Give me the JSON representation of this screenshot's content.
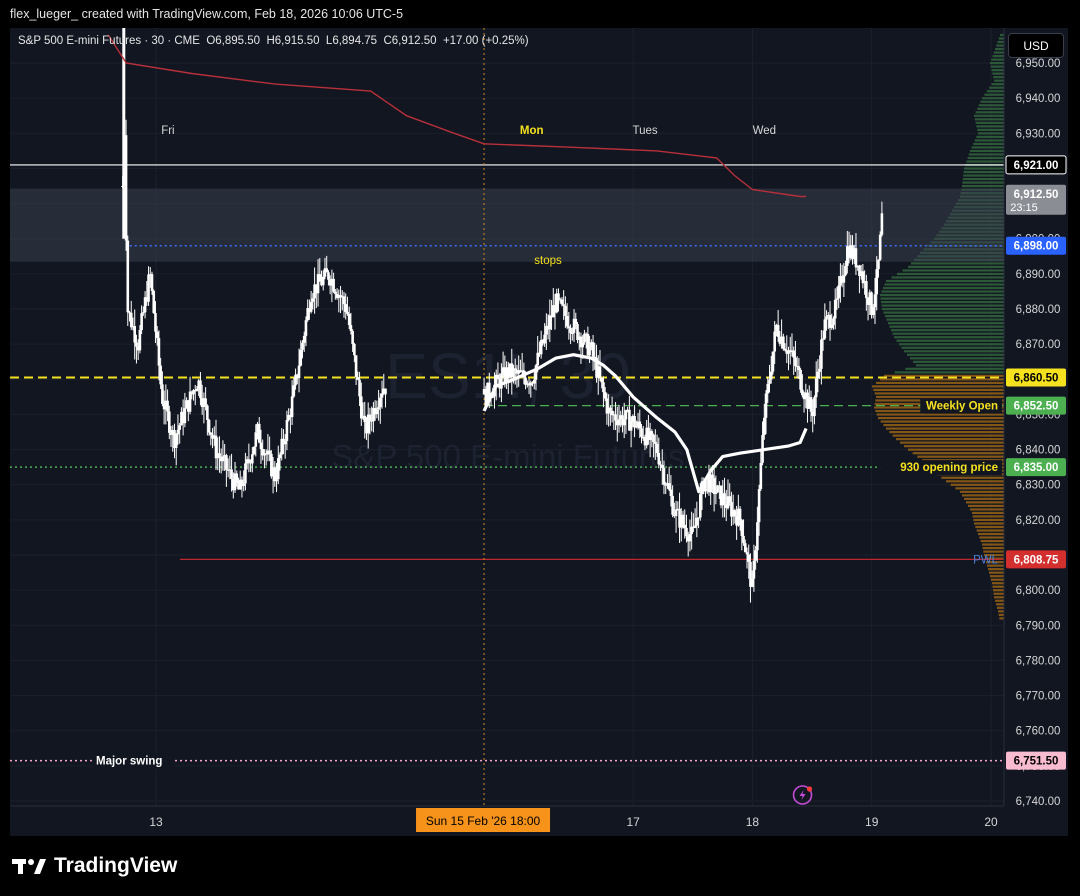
{
  "header": {
    "author_line": "flex_lueger_ created with TradingView.com, Feb 18, 2026 10:06 UTC-5"
  },
  "legend": {
    "symbol": "S&P 500 E-mini Futures · 30 · CME",
    "open_label": "O",
    "open": "6,895.50",
    "high_label": "H",
    "high": "6,915.50",
    "low_label": "L",
    "low": "6,894.75",
    "close_label": "C",
    "close": "6,912.50",
    "change": "+17.00 (+0.25%)"
  },
  "watermark": {
    "ticker": "ES1!, 30",
    "name": "S&P 500 E-mini Futures"
  },
  "currency_button": "USD",
  "branding": {
    "name": "TradingView"
  },
  "colors": {
    "background": "#111621",
    "candle": "#ffffff",
    "vwap": "#b8303a",
    "session_line": "#ffffff",
    "profile_green": "#2e5c3a",
    "profile_orange": "#8a5a16",
    "yellow_dash": "#f5e11e",
    "green_dash": "#4caf50",
    "blue_dots": "#3d6bff",
    "pink_dots": "#f3a6c5",
    "pwl_line": "#c0272d"
  },
  "chart_data": {
    "type": "candlestick",
    "y_axis": {
      "range": [
        6735,
        6960
      ],
      "ticks": [
        6950,
        6940,
        6930,
        6920,
        6910,
        6900,
        6890,
        6880,
        6870,
        6860,
        6850,
        6840,
        6830,
        6820,
        6810,
        6800,
        6790,
        6780,
        6770,
        6760,
        6750,
        6740
      ],
      "tick_labels": [
        "6,950.00",
        "6,940.00",
        "6,930.00",
        "6,920.00",
        "6,910.00",
        "6,900.00",
        "6,890.00",
        "6,880.00",
        "6,870.00",
        "6,860.00",
        "6,850.00",
        "6,840.00",
        "6,830.00",
        "6,820.00",
        "6,810.00",
        "6,800.00",
        "6,790.00",
        "6,780.00",
        "6,770.00",
        "6,760.00",
        "6,750.00",
        "6,740.00"
      ]
    },
    "x_axis": {
      "ticks": [
        {
          "label": "13",
          "day": 13.0
        },
        {
          "label": "17",
          "day": 17.0
        },
        {
          "label": "18",
          "day": 18.0
        },
        {
          "label": "19",
          "day": 19.0
        },
        {
          "label": "20",
          "day": 20.0
        }
      ],
      "crosshair_label": "Sun 15 Feb '26   18:00",
      "crosshair_day": 15.75,
      "range": [
        12.58,
        20.15
      ]
    },
    "day_labels": [
      {
        "label": "Fri",
        "day": 13.1,
        "highlight": false
      },
      {
        "label": "Mon",
        "day": 16.15,
        "highlight": true
      },
      {
        "label": "Tues",
        "day": 17.1,
        "highlight": false
      },
      {
        "label": "Wed",
        "day": 18.1,
        "highlight": false
      }
    ],
    "price_markers": [
      {
        "label": "6,921.00",
        "price": 6921.0,
        "bg": "#000000",
        "fg": "#ffffff",
        "border": "#ffffff"
      },
      {
        "label": "6,912.50",
        "sub": "23:15",
        "price": 6912.5,
        "bg": "#8a8d93",
        "fg": "#ffffff"
      },
      {
        "label": "6,898.00",
        "price": 6898.0,
        "bg": "#2962ff",
        "fg": "#ffffff"
      },
      {
        "label": "6,860.50",
        "price": 6860.5,
        "bg": "#f5e11e",
        "fg": "#000000"
      },
      {
        "label": "6,852.50",
        "price": 6852.5,
        "bg": "#4caf50",
        "fg": "#ffffff"
      },
      {
        "label": "6,835.00",
        "price": 6835.0,
        "bg": "#4caf50",
        "fg": "#ffffff"
      },
      {
        "label": "6,808.75",
        "price": 6808.75,
        "bg": "#d32f2f",
        "fg": "#ffffff"
      },
      {
        "label": "6,751.50",
        "price": 6751.5,
        "bg": "#f8bbd0",
        "fg": "#000000"
      }
    ],
    "levels": [
      {
        "name": "session-high-line",
        "price": 6921.0,
        "style": "solid",
        "color": "#ffffff"
      },
      {
        "name": "stops-zone",
        "price_from": 6898.0,
        "price_to": 6912.0,
        "label": "stops"
      },
      {
        "name": "stops-line",
        "price": 6898.0,
        "style": "dotted",
        "color": "#3d6bff",
        "from_day": 12.78
      },
      {
        "name": "yellow-level",
        "price": 6860.5,
        "style": "dashed",
        "color": "#f5e11e"
      },
      {
        "name": "weekly-open",
        "price": 6852.5,
        "style": "dashed",
        "color": "#4caf50",
        "label": "Weekly Open",
        "from_day": 15.75
      },
      {
        "name": "opening-price-930",
        "price": 6835.0,
        "style": "dotted",
        "color": "#4caf50",
        "label": "930 opening price"
      },
      {
        "name": "pwl",
        "price": 6808.75,
        "style": "solid",
        "color": "#c0272d",
        "label": "PWL",
        "from_day": 13.2
      },
      {
        "name": "major-swing",
        "price": 6751.5,
        "style": "dotted",
        "color": "#f3a6c5",
        "label": "Major swing"
      }
    ],
    "vwap": {
      "points": [
        [
          12.6,
          6958
        ],
        [
          12.75,
          6950
        ],
        [
          13.3,
          6947
        ],
        [
          14.0,
          6944
        ],
        [
          14.8,
          6942
        ],
        [
          15.1,
          6935
        ],
        [
          15.5,
          6930
        ],
        [
          15.75,
          6927
        ],
        [
          16.5,
          6926
        ],
        [
          17.2,
          6925
        ],
        [
          17.7,
          6923
        ],
        [
          17.85,
          6918
        ],
        [
          18.0,
          6914
        ],
        [
          18.4,
          6912
        ],
        [
          18.45,
          6912
        ]
      ]
    },
    "session_avg": {
      "points": [
        [
          15.75,
          6851
        ],
        [
          15.85,
          6858
        ],
        [
          16.0,
          6860
        ],
        [
          16.2,
          6863
        ],
        [
          16.35,
          6866
        ],
        [
          16.5,
          6867
        ],
        [
          16.65,
          6866
        ],
        [
          16.75,
          6864
        ],
        [
          16.85,
          6861
        ],
        [
          17.0,
          6855
        ],
        [
          17.2,
          6849
        ],
        [
          17.35,
          6845
        ],
        [
          17.45,
          6840
        ],
        [
          17.55,
          6828
        ],
        [
          17.65,
          6834
        ],
        [
          17.75,
          6838
        ],
        [
          17.9,
          6839
        ],
        [
          18.1,
          6840
        ],
        [
          18.3,
          6841
        ],
        [
          18.4,
          6842
        ],
        [
          18.45,
          6846
        ]
      ]
    },
    "candles_anchor": [
      [
        12.72,
        6915
      ],
      [
        12.73,
        6940
      ],
      [
        12.76,
        6880
      ],
      [
        12.85,
        6870
      ],
      [
        12.95,
        6890
      ],
      [
        13.05,
        6855
      ],
      [
        13.15,
        6843
      ],
      [
        13.35,
        6860
      ],
      [
        13.5,
        6840
      ],
      [
        13.7,
        6828
      ],
      [
        13.85,
        6845
      ],
      [
        14.0,
        6832
      ],
      [
        14.15,
        6855
      ],
      [
        14.3,
        6885
      ],
      [
        14.45,
        6890
      ],
      [
        14.6,
        6880
      ],
      [
        14.75,
        6845
      ],
      [
        14.9,
        6858
      ],
      [
        15.75,
        6855
      ],
      [
        15.95,
        6862
      ],
      [
        16.15,
        6860
      ],
      [
        16.35,
        6882
      ],
      [
        16.5,
        6875
      ],
      [
        16.65,
        6868
      ],
      [
        16.8,
        6850
      ],
      [
        17.0,
        6848
      ],
      [
        17.2,
        6840
      ],
      [
        17.35,
        6822
      ],
      [
        17.5,
        6815
      ],
      [
        17.6,
        6832
      ],
      [
        17.75,
        6826
      ],
      [
        17.9,
        6820
      ],
      [
        18.0,
        6800
      ],
      [
        18.1,
        6850
      ],
      [
        18.2,
        6875
      ],
      [
        18.35,
        6865
      ],
      [
        18.5,
        6850
      ],
      [
        18.6,
        6875
      ],
      [
        18.7,
        6880
      ],
      [
        18.8,
        6898
      ],
      [
        18.9,
        6892
      ],
      [
        19.0,
        6880
      ],
      [
        19.05,
        6890
      ],
      [
        19.1,
        6912
      ]
    ],
    "volume_profile": {
      "price_range": [
        6790,
        6958
      ],
      "split_price": 6861,
      "shape": [
        [
          6958,
          4
        ],
        [
          6950,
          14
        ],
        [
          6945,
          10
        ],
        [
          6940,
          22
        ],
        [
          6935,
          30
        ],
        [
          6930,
          26
        ],
        [
          6925,
          34
        ],
        [
          6920,
          40
        ],
        [
          6915,
          42
        ],
        [
          6912,
          44
        ],
        [
          6908,
          52
        ],
        [
          6904,
          60
        ],
        [
          6900,
          70
        ],
        [
          6896,
          84
        ],
        [
          6892,
          96
        ],
        [
          6888,
          118
        ],
        [
          6884,
          124
        ],
        [
          6880,
          122
        ],
        [
          6876,
          116
        ],
        [
          6872,
          110
        ],
        [
          6868,
          100
        ],
        [
          6864,
          88
        ],
        [
          6861,
          120
        ],
        [
          6858,
          132
        ],
        [
          6855,
          128
        ],
        [
          6852,
          130
        ],
        [
          6849,
          126
        ],
        [
          6846,
          118
        ],
        [
          6843,
          108
        ],
        [
          6840,
          96
        ],
        [
          6837,
          82
        ],
        [
          6834,
          72
        ],
        [
          6831,
          58
        ],
        [
          6828,
          44
        ],
        [
          6825,
          38
        ],
        [
          6822,
          32
        ],
        [
          6819,
          30
        ],
        [
          6816,
          26
        ],
        [
          6813,
          22
        ],
        [
          6810,
          20
        ],
        [
          6806,
          16
        ],
        [
          6802,
          12
        ],
        [
          6798,
          10
        ],
        [
          6794,
          6
        ],
        [
          6791,
          4
        ]
      ]
    }
  }
}
